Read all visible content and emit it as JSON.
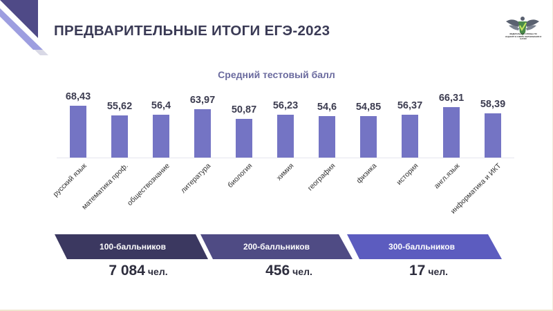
{
  "header": {
    "title": "ПРЕДВАРИТЕЛЬНЫЕ ИТОГИ ЕГЭ-2023",
    "logo_icon": "rosobrnadzor-eagle-emblem-icon",
    "logo_caption": "ФЕДЕРАЛЬНАЯ СЛУЖБА ПО НАДЗОРУ В СФЕРЕ ОБРАЗОВАНИЯ И НАУКИ"
  },
  "colors": {
    "bar": "#7474c4",
    "title": "#3a3a55",
    "chart_title": "#6a6a9e",
    "ribbon_1": "#3b3860",
    "ribbon_2": "#4f4b84",
    "ribbon_3": "#5c5cbf",
    "corner_dark": "#4f4a87",
    "corner_light": "#9d9ee0"
  },
  "chart_data": {
    "type": "bar",
    "title": "Средний тестовый балл",
    "xlabel": "",
    "ylabel": "",
    "ylim": [
      0,
      70
    ],
    "grid": false,
    "legend": null,
    "categories": [
      "русский язык",
      "математика проф.",
      "обществознание",
      "литература",
      "биология",
      "химия",
      "география",
      "физика",
      "история",
      "англ.язык",
      "информатика и ИКТ"
    ],
    "values": [
      68.43,
      55.62,
      56.4,
      63.97,
      50.87,
      56.23,
      54.6,
      54.85,
      56.37,
      66.31,
      58.39
    ],
    "value_labels": [
      "68,43",
      "55,62",
      "56,4",
      "63,97",
      "50,87",
      "56,23",
      "54,6",
      "54,85",
      "56,37",
      "66,31",
      "58,39"
    ]
  },
  "summary": [
    {
      "label": "100-балльников",
      "value": "7 084",
      "unit": "чел."
    },
    {
      "label": "200-балльников",
      "value": "456",
      "unit": "чел."
    },
    {
      "label": "300-балльников",
      "value": "17",
      "unit": "чел."
    }
  ]
}
